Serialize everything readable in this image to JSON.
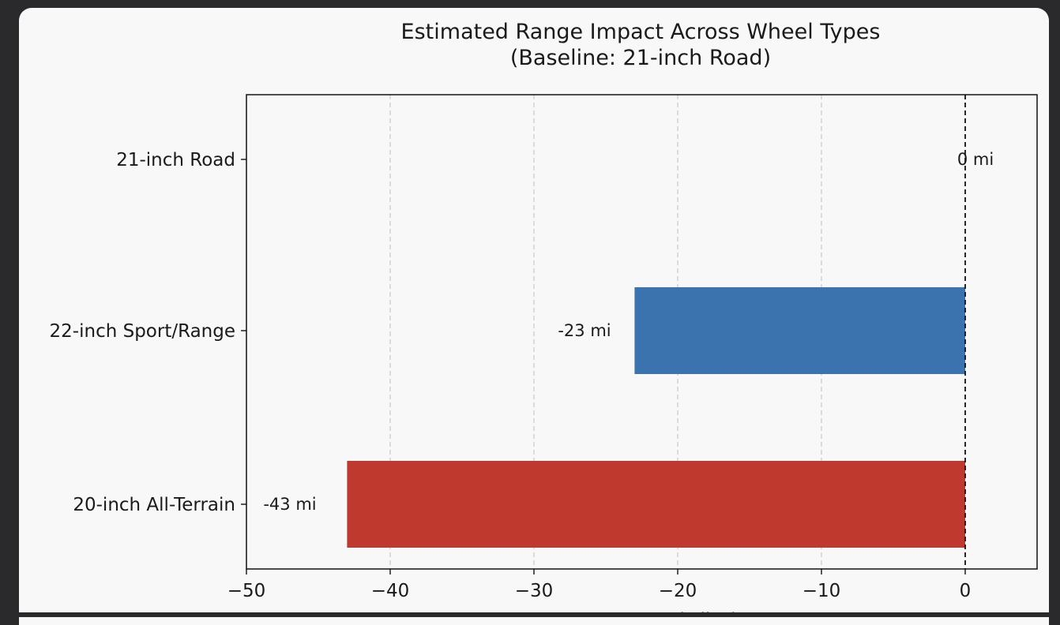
{
  "chart_data": {
    "type": "bar",
    "orientation": "horizontal",
    "title": "Estimated Range Impact Across Wheel Types",
    "subtitle": "(Baseline: 21-inch Road)",
    "xlabel": "Range Impact (Miles)",
    "ylabel": "",
    "xlim": [
      -50,
      5
    ],
    "xticks": [
      -50,
      -40,
      -30,
      -20,
      -10,
      0
    ],
    "xtick_labels": [
      "−50",
      "−40",
      "−30",
      "−20",
      "−10",
      "0"
    ],
    "grid": "x-dashed",
    "reference_line": 0,
    "categories": [
      "21-inch Road",
      "22-inch Sport/Range",
      "20-inch All-Terrain"
    ],
    "values": [
      0,
      -23,
      -43
    ],
    "bar_labels": [
      "0 mi",
      "-23 mi",
      "-43 mi"
    ],
    "colors": [
      "#3a73ad",
      "#3a73ad",
      "#c0392f"
    ]
  }
}
